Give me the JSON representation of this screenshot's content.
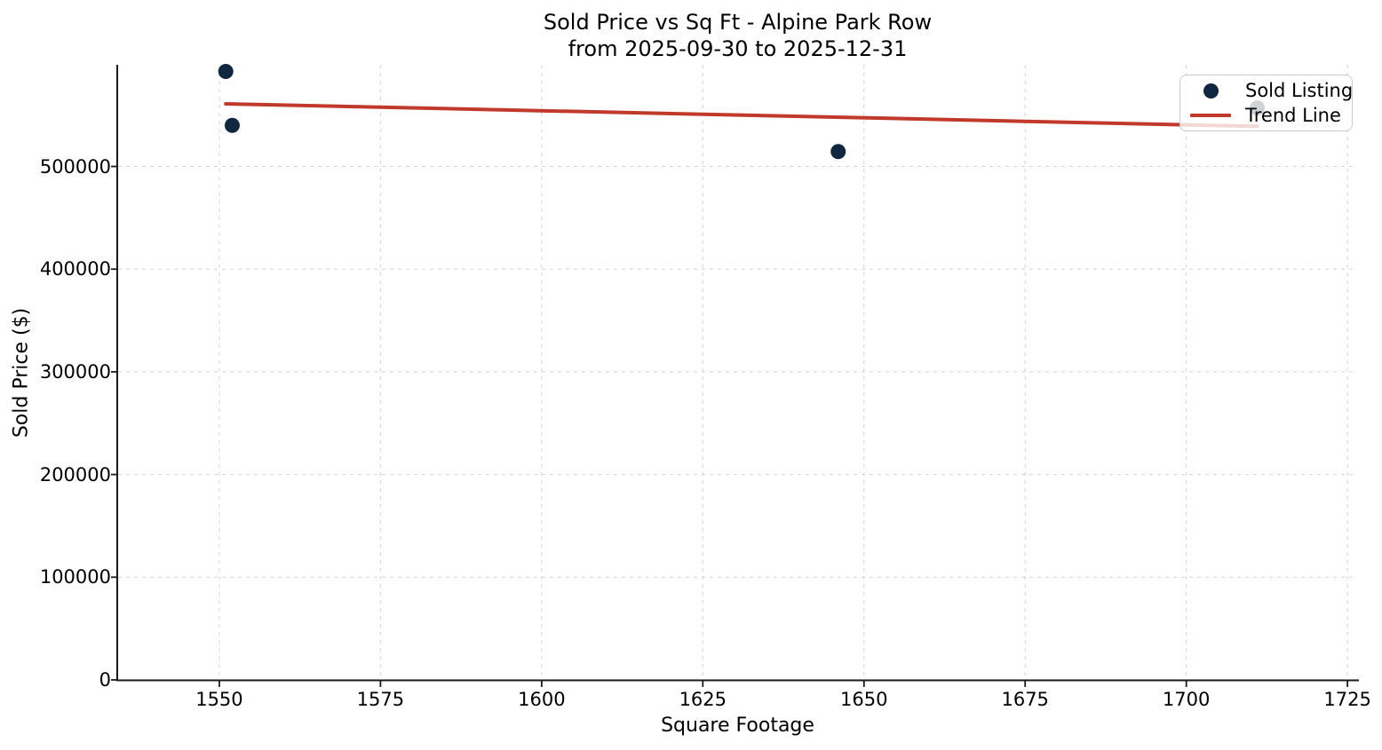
{
  "chart_data": {
    "type": "scatter",
    "title": "Sold Price vs Sq Ft - Alpine Park Row",
    "subtitle": "from 2025-09-30 to 2025-12-31",
    "xlabel": "Square Footage",
    "ylabel": "Sold Price ($)",
    "xlim": [
      1534.3,
      1726.5
    ],
    "ylim": [
      0,
      599000
    ],
    "x_ticks": [
      1550,
      1575,
      1600,
      1625,
      1650,
      1675,
      1700,
      1725
    ],
    "y_ticks": [
      0,
      100000,
      200000,
      300000,
      400000,
      500000
    ],
    "grid": true,
    "grid_style": "dashed",
    "legend_position": "upper right",
    "series": [
      {
        "name": "Sold Listing",
        "type": "scatter",
        "marker": "dot",
        "color": "#10273f",
        "points": [
          {
            "sqft": 1551,
            "price": 592500
          },
          {
            "sqft": 1552,
            "price": 540000
          },
          {
            "sqft": 1646,
            "price": 514500
          },
          {
            "sqft": 1711,
            "price": 557000
          }
        ]
      },
      {
        "name": "Trend Line",
        "type": "line",
        "marker": "line",
        "color": "#c0392b",
        "points": [
          {
            "sqft": 1551,
            "price": 561000
          },
          {
            "sqft": 1711,
            "price": 539000
          }
        ]
      }
    ],
    "style": {
      "grid_color": "#d4d4d4",
      "spine_color": "#1a1a1a",
      "text_color": "#000000",
      "legend_background": "rgba(255,255,255,0.8)",
      "legend_border": "#cccccc"
    }
  }
}
